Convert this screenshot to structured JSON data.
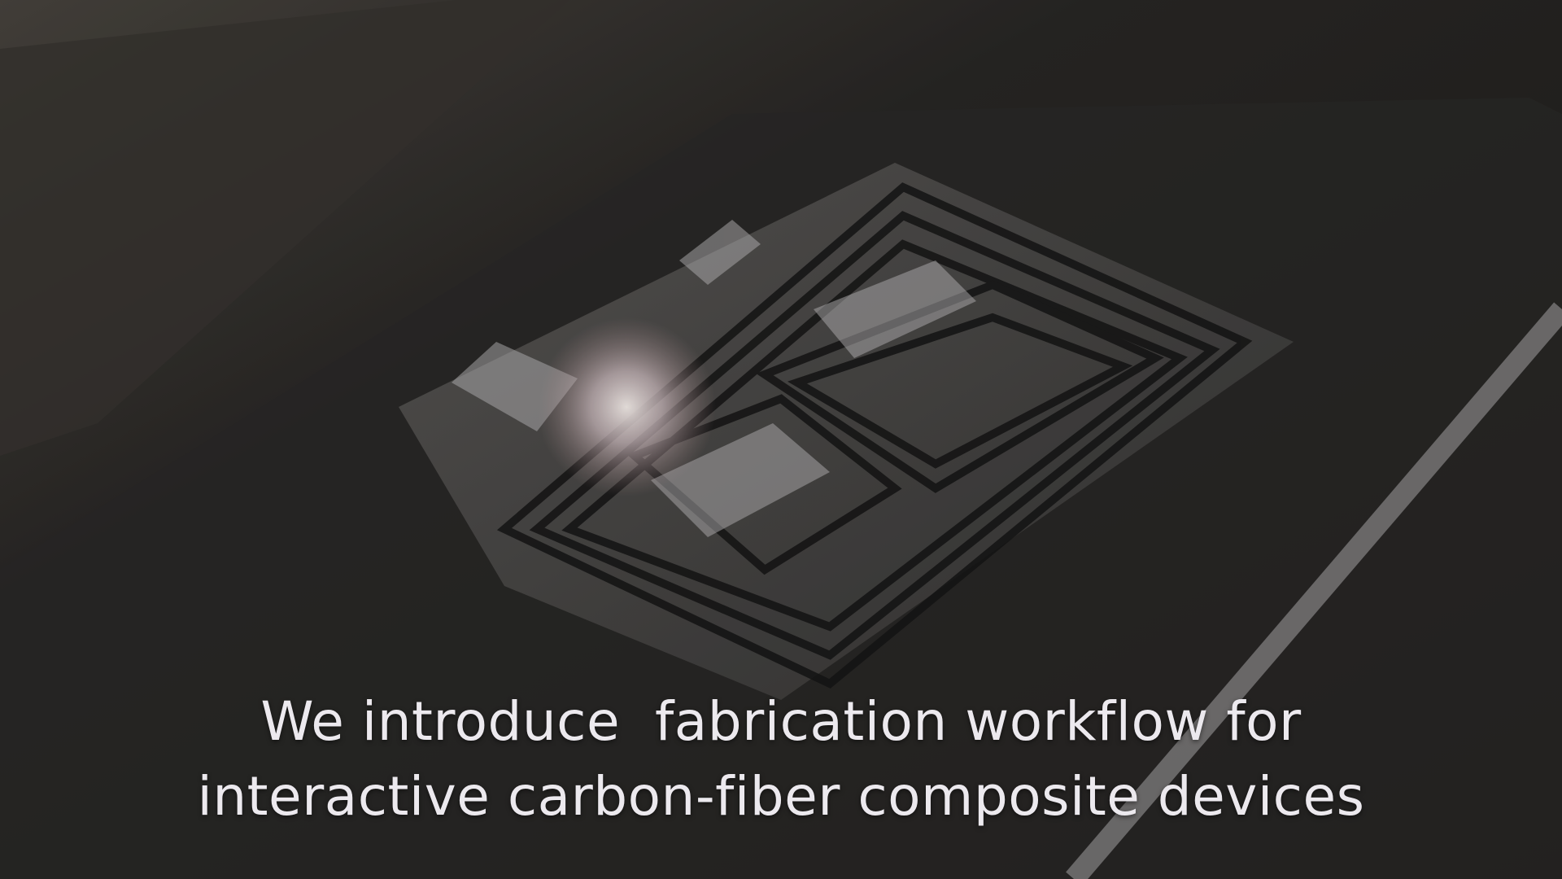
{
  "caption": {
    "lines": [
      "We introduce  fabrication workflow for",
      "interactive carbon-fiber composite devices"
    ]
  }
}
